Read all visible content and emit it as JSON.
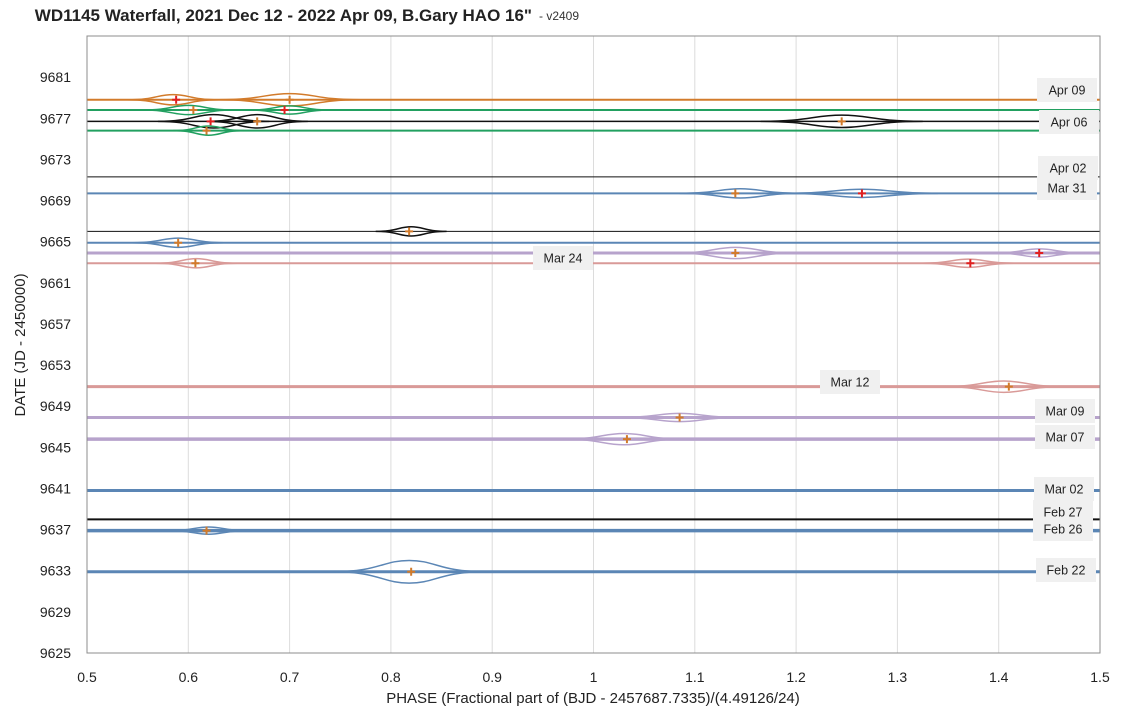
{
  "chart_data": {
    "type": "scatter",
    "title": "WD1145 Waterfall, 2021 Dec 12 - 2022 Apr 09, B.Gary HAO 16\"",
    "subtitle": "- v2409",
    "xlabel": "PHASE (Fractional part of (BJD - 2457687.7335)/(4.49126/24)",
    "ylabel": "DATE (JD - 2450000)",
    "xlim": [
      0.5,
      1.5
    ],
    "ylim": [
      9625,
      9685
    ],
    "x_ticks": [
      "0.5",
      "0.6",
      "0.7",
      "0.8",
      "0.9",
      "1",
      "1.1",
      "1.2",
      "1.3",
      "1.4",
      "1.5"
    ],
    "y_ticks": [
      "9625",
      "9629",
      "9633",
      "9637",
      "9641",
      "9645",
      "9649",
      "9653",
      "9657",
      "9661",
      "9665",
      "9669",
      "9673",
      "9677",
      "9681"
    ],
    "grid": true,
    "series": [
      {
        "date": 9678.8,
        "label": "Apr 09",
        "color": "#d27b2b",
        "width": 2,
        "dips": [
          {
            "x": 0.585,
            "w": 0.045,
            "h": 0.5
          },
          {
            "x": 0.7,
            "w": 0.07,
            "h": 0.6
          }
        ],
        "markers": [
          {
            "x": 0.588,
            "c": "#e02020"
          },
          {
            "x": 0.7,
            "c": "#d27b2b"
          }
        ]
      },
      {
        "date": 9677.8,
        "label": "",
        "color": "#22a060",
        "width": 2,
        "dips": [
          {
            "x": 0.6,
            "w": 0.045,
            "h": 0.45
          },
          {
            "x": 0.7,
            "w": 0.04,
            "h": 0.4
          }
        ],
        "markers": [
          {
            "x": 0.605,
            "c": "#d27b2b"
          },
          {
            "x": 0.695,
            "c": "#e02020"
          }
        ]
      },
      {
        "date": 9676.7,
        "label": "",
        "color": "#111111",
        "width": 1.5,
        "dips": [
          {
            "x": 0.625,
            "w": 0.055,
            "h": 0.65
          },
          {
            "x": 0.668,
            "w": 0.05,
            "h": 0.65
          },
          {
            "x": 1.245,
            "w": 0.08,
            "h": 0.6
          }
        ],
        "markers": [
          {
            "x": 0.622,
            "c": "#e02020"
          },
          {
            "x": 0.668,
            "c": "#d27b2b"
          },
          {
            "x": 1.245,
            "c": "#d27b2b"
          }
        ]
      },
      {
        "date": 9675.8,
        "label": "Apr 06",
        "color": "#22a060",
        "width": 2,
        "dips": [
          {
            "x": 0.62,
            "w": 0.035,
            "h": 0.45
          }
        ],
        "markers": [
          {
            "x": 0.618,
            "c": "#d27b2b"
          }
        ]
      },
      {
        "date": 9671.3,
        "label": "Apr 02",
        "color": "#111111",
        "width": 1,
        "dips": [],
        "markers": []
      },
      {
        "date": 9669.7,
        "label": "Mar 31",
        "color": "#5b86b5",
        "width": 2,
        "dips": [
          {
            "x": 1.145,
            "w": 0.06,
            "h": 0.45
          },
          {
            "x": 1.265,
            "w": 0.075,
            "h": 0.4
          }
        ],
        "markers": [
          {
            "x": 1.14,
            "c": "#d27b2b"
          },
          {
            "x": 1.265,
            "c": "#e02020"
          }
        ]
      },
      {
        "date": 9666.0,
        "label": "",
        "color": "#111111",
        "width": 1,
        "dips": [
          {
            "x": 0.82,
            "w": 0.035,
            "h": 0.45
          }
        ],
        "markers": [
          {
            "x": 0.818,
            "c": "#d27b2b"
          }
        ]
      },
      {
        "date": 9664.9,
        "label": "",
        "color": "#5b86b5",
        "width": 2,
        "dips": [
          {
            "x": 0.59,
            "w": 0.045,
            "h": 0.45
          }
        ],
        "markers": [
          {
            "x": 0.59,
            "c": "#d27b2b"
          }
        ]
      },
      {
        "date": 9663.9,
        "label": "",
        "color": "#b7a3cc",
        "width": 3,
        "dips": [
          {
            "x": 1.14,
            "w": 0.06,
            "h": 0.55
          },
          {
            "x": 1.44,
            "w": 0.045,
            "h": 0.4
          }
        ],
        "markers": [
          {
            "x": 1.14,
            "c": "#d27b2b"
          },
          {
            "x": 1.44,
            "c": "#e02020"
          }
        ]
      },
      {
        "date": 9662.9,
        "label": "Mar 24",
        "color": "#d99a98",
        "width": 2,
        "dips": [
          {
            "x": 0.608,
            "w": 0.04,
            "h": 0.45
          },
          {
            "x": 1.37,
            "w": 0.045,
            "h": 0.4
          }
        ],
        "markers": [
          {
            "x": 0.607,
            "c": "#d27b2b"
          },
          {
            "x": 1.372,
            "c": "#e02020"
          }
        ]
      },
      {
        "date": 9650.9,
        "label": "Mar 12",
        "color": "#d99a98",
        "width": 3,
        "dips": [
          {
            "x": 1.405,
            "w": 0.06,
            "h": 0.55
          }
        ],
        "markers": [
          {
            "x": 1.41,
            "c": "#d27b2b"
          }
        ]
      },
      {
        "date": 9647.9,
        "label": "Mar 09",
        "color": "#b7a3cc",
        "width": 3,
        "dips": [
          {
            "x": 1.085,
            "w": 0.06,
            "h": 0.4
          }
        ],
        "markers": [
          {
            "x": 1.085,
            "c": "#d27b2b"
          }
        ]
      },
      {
        "date": 9645.8,
        "label": "Mar 07",
        "color": "#b7a3cc",
        "width": 3.5,
        "dips": [
          {
            "x": 1.03,
            "w": 0.06,
            "h": 0.55
          }
        ],
        "markers": [
          {
            "x": 1.033,
            "c": "#d27b2b"
          }
        ]
      },
      {
        "date": 9640.8,
        "label": "Mar 02",
        "color": "#5b86b5",
        "width": 3,
        "dips": [],
        "markers": []
      },
      {
        "date": 9638.0,
        "label": "Feb 27",
        "color": "#111111",
        "width": 2,
        "dips": [],
        "markers": []
      },
      {
        "date": 9636.9,
        "label": "Feb 26",
        "color": "#5b86b5",
        "width": 3.5,
        "dips": [
          {
            "x": 0.62,
            "w": 0.04,
            "h": 0.35
          }
        ],
        "markers": [
          {
            "x": 0.618,
            "c": "#d27b2b"
          }
        ]
      },
      {
        "date": 9632.9,
        "label": "Feb 22",
        "color": "#5b86b5",
        "width": 3,
        "dips": [
          {
            "x": 0.818,
            "w": 0.075,
            "h": 1.1
          }
        ],
        "markers": [
          {
            "x": 0.82,
            "c": "#d27b2b"
          }
        ]
      }
    ]
  }
}
